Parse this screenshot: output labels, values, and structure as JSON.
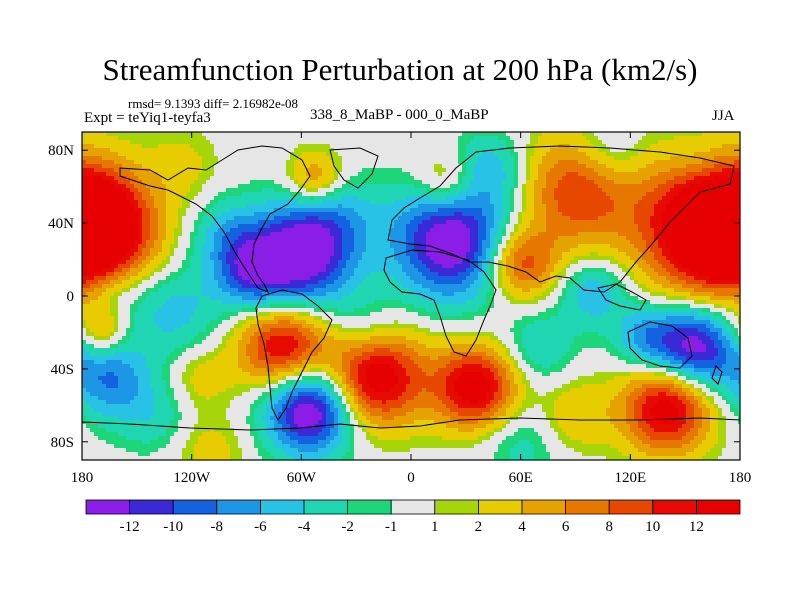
{
  "chart_data": {
    "type": "heatmap",
    "title": "Streamfunction Perturbation at 200 hPa (km2/s)",
    "stats_line": "rmsd= 9.1393 diff= 2.16982e-08",
    "left_label": "Expt = teYiq1-teyfa3",
    "center_label": "338_8_MaBP - 000_0_MaBP",
    "right_label": "JJA",
    "x_range": [
      -180,
      180
    ],
    "y_range": [
      -90,
      90
    ],
    "x_ticks": [
      {
        "value": -180,
        "label": "180"
      },
      {
        "value": -120,
        "label": "120W"
      },
      {
        "value": -60,
        "label": "60W"
      },
      {
        "value": 0,
        "label": "0"
      },
      {
        "value": 60,
        "label": "60E"
      },
      {
        "value": 120,
        "label": "120E"
      },
      {
        "value": 180,
        "label": "180"
      }
    ],
    "y_ticks": [
      {
        "value": 80,
        "label": "80N"
      },
      {
        "value": 40,
        "label": "40N"
      },
      {
        "value": 0,
        "label": "0"
      },
      {
        "value": -40,
        "label": "40S"
      },
      {
        "value": -80,
        "label": "80S"
      }
    ],
    "levels": [
      -12,
      -10,
      -8,
      -6,
      -4,
      -2,
      -1,
      1,
      2,
      4,
      6,
      8,
      10,
      12
    ],
    "level_labels": [
      "-12",
      "-10",
      "-8",
      "-6",
      "-4",
      "-2",
      "-1",
      "1",
      "2",
      "4",
      "6",
      "8",
      "10",
      "12"
    ],
    "colors": [
      "#8a1ee6",
      "#3a2ad6",
      "#1462e0",
      "#1e96e6",
      "#28c2e6",
      "#20d6b2",
      "#1ed67a",
      "#e6e6e6",
      "#a6d60a",
      "#e6cc00",
      "#e6a200",
      "#e67800",
      "#e64800",
      "#e60a00",
      "#e60000"
    ],
    "field_centers": [
      {
        "lon": -172,
        "lat": 36,
        "value": 16,
        "width": 22
      },
      {
        "lon": 162,
        "lat": 38,
        "value": 16,
        "width": 26
      },
      {
        "lon": 92,
        "lat": 58,
        "value": 10,
        "width": 22
      },
      {
        "lon": 20,
        "lat": 62,
        "value": 6,
        "width": 12
      },
      {
        "lon": -52,
        "lat": 64,
        "value": 7,
        "width": 11
      },
      {
        "lon": -125,
        "lat": 72,
        "value": 2.5,
        "width": 14
      },
      {
        "lon": 60,
        "lat": 18,
        "value": 10,
        "width": 14
      },
      {
        "lon": -40,
        "lat": 45,
        "value": -4,
        "width": 16
      },
      {
        "lon": -100,
        "lat": 33,
        "value": -5,
        "width": 14
      },
      {
        "lon": 44,
        "lat": 70,
        "value": -5,
        "width": 14
      },
      {
        "lon": 108,
        "lat": 78,
        "value": -4,
        "width": 14
      },
      {
        "lon": 158,
        "lat": 72,
        "value": -2,
        "width": 12
      },
      {
        "lon": -60,
        "lat": 22,
        "value": -15,
        "width": 20
      },
      {
        "lon": 22,
        "lat": 30,
        "value": -15,
        "width": 22
      },
      {
        "lon": -88,
        "lat": 12,
        "value": -8,
        "width": 14
      },
      {
        "lon": 100,
        "lat": 2,
        "value": -6,
        "width": 13
      },
      {
        "lon": -165,
        "lat": 5,
        "value": -4,
        "width": 14
      },
      {
        "lon": -130,
        "lat": -8,
        "value": -5,
        "width": 17
      },
      {
        "lon": -25,
        "lat": -20,
        "value": -4,
        "width": 14
      },
      {
        "lon": 70,
        "lat": -28,
        "value": -4,
        "width": 14
      },
      {
        "lon": -165,
        "lat": -45,
        "value": -8,
        "width": 16
      },
      {
        "lon": 155,
        "lat": -28,
        "value": -14,
        "width": 16
      },
      {
        "lon": 128,
        "lat": -22,
        "value": -6,
        "width": 12
      },
      {
        "lon": -55,
        "lat": -62,
        "value": -16,
        "width": 17
      },
      {
        "lon": -140,
        "lat": -67,
        "value": -3,
        "width": 14
      },
      {
        "lon": 60,
        "lat": -80,
        "value": -3,
        "width": 16
      },
      {
        "lon": -70,
        "lat": -28,
        "value": 13,
        "width": 17
      },
      {
        "lon": -20,
        "lat": -44,
        "value": 15,
        "width": 19
      },
      {
        "lon": 35,
        "lat": -50,
        "value": 14,
        "width": 16
      },
      {
        "lon": 140,
        "lat": -62,
        "value": 14,
        "width": 17
      },
      {
        "lon": 90,
        "lat": -65,
        "value": 4,
        "width": 14
      },
      {
        "lon": -170,
        "lat": -20,
        "value": 6,
        "width": 10
      },
      {
        "lon": -115,
        "lat": -45,
        "value": 3,
        "width": 12
      },
      {
        "lon": -110,
        "lat": -85,
        "value": 3,
        "width": 14
      }
    ]
  }
}
